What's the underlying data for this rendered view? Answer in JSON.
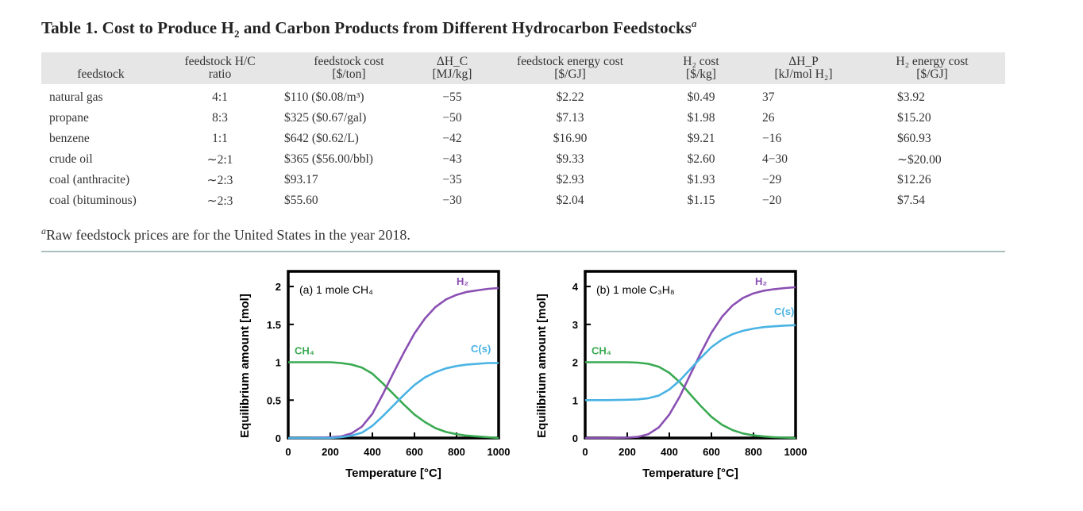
{
  "caption": {
    "prefix": "Table 1. Cost to Produce H",
    "sub": "2",
    "suffix": " and Carbon Products from Different Hydrocarbon Feedstocks",
    "note_marker": "a"
  },
  "table": {
    "headers": [
      {
        "line1": "",
        "line2": "feedstock"
      },
      {
        "line1": "feedstock H/C",
        "line2": "ratio"
      },
      {
        "line1": "feedstock cost",
        "line2": "[$/ton]"
      },
      {
        "line1": "ΔH_C",
        "line2": "[MJ/kg]"
      },
      {
        "line1": "feedstock energy cost",
        "line2": "[$/GJ]"
      },
      {
        "line1": "H₂ cost",
        "line2": "[$/kg]"
      },
      {
        "line1": "ΔH_P",
        "line2": "[kJ/mol H₂]"
      },
      {
        "line1": "H₂ energy cost",
        "line2": "[$/GJ]"
      }
    ],
    "rows": [
      [
        "natural gas",
        "4:1",
        "$110 ($0.08/m³)",
        "−55",
        "$2.22",
        "$0.49",
        "37",
        "$3.92"
      ],
      [
        "propane",
        "8:3",
        "$325 ($0.67/gal)",
        "−50",
        "$7.13",
        "$1.98",
        "26",
        "$15.20"
      ],
      [
        "benzene",
        "1:1",
        "$642 ($0.62/L)",
        "−42",
        "$16.90",
        "$9.21",
        "−16",
        "$60.93"
      ],
      [
        "crude oil",
        "∼2:1",
        "$365 ($56.00/bbl)",
        "−43",
        "$9.33",
        "$2.60",
        "4−30",
        "∼$20.00"
      ],
      [
        "coal (anthracite)",
        "∼2:3",
        "$93.17",
        "−35",
        "$2.93",
        "$1.93",
        "−29",
        "$12.26"
      ],
      [
        "coal (bituminous)",
        "∼2:3",
        "$55.60",
        "−30",
        "$2.04",
        "$1.15",
        "−20",
        "$7.54"
      ]
    ]
  },
  "footnote": {
    "marker": "a",
    "text": "Raw feedstock prices are for the United States in the year 2018."
  },
  "chart_data": [
    {
      "type": "line",
      "title": "(a) 1 mole CH₄",
      "xlabel": "Temperature [°C]",
      "ylabel": "Equilibrium amount [mol]",
      "xlim": [
        0,
        1000
      ],
      "ylim": [
        0,
        2.2
      ],
      "xticks": [
        0,
        200,
        400,
        600,
        800,
        1000
      ],
      "yticks": [
        0,
        0.5,
        1,
        1.5,
        2
      ],
      "ytick_labels": [
        "0",
        "0.5",
        "1",
        "1.5",
        "2"
      ],
      "grid": false,
      "x": [
        0,
        100,
        200,
        250,
        300,
        350,
        400,
        450,
        500,
        550,
        600,
        650,
        700,
        750,
        800,
        850,
        900,
        950,
        1000
      ],
      "series": [
        {
          "name": "CH₄",
          "color": "#3aaa52",
          "values": [
            1.0,
            1.0,
            1.0,
            0.99,
            0.97,
            0.93,
            0.85,
            0.72,
            0.58,
            0.44,
            0.31,
            0.21,
            0.13,
            0.08,
            0.05,
            0.03,
            0.02,
            0.01,
            0.0
          ]
        },
        {
          "name": "H₂",
          "color": "#8a4fb3",
          "values": [
            0.0,
            0.0,
            0.01,
            0.02,
            0.06,
            0.15,
            0.32,
            0.58,
            0.86,
            1.13,
            1.38,
            1.58,
            1.73,
            1.83,
            1.89,
            1.93,
            1.95,
            1.97,
            1.98
          ]
        },
        {
          "name": "C(s)",
          "color": "#49b3e3",
          "values": [
            0.0,
            0.0,
            0.0,
            0.01,
            0.03,
            0.07,
            0.16,
            0.29,
            0.43,
            0.57,
            0.7,
            0.8,
            0.87,
            0.92,
            0.95,
            0.97,
            0.98,
            0.99,
            0.99
          ]
        }
      ]
    },
    {
      "type": "line",
      "title": "(b) 1 mole C₃H₈",
      "xlabel": "Temperature [°C]",
      "ylabel": "Equilibrium amount [mol]",
      "xlim": [
        0,
        1000
      ],
      "ylim": [
        0,
        4.4
      ],
      "xticks": [
        0,
        200,
        400,
        600,
        800,
        1000
      ],
      "yticks": [
        0,
        1,
        2,
        3,
        4
      ],
      "ytick_labels": [
        "0",
        "1",
        "2",
        "3",
        "4"
      ],
      "grid": false,
      "x": [
        0,
        100,
        200,
        250,
        300,
        350,
        400,
        450,
        500,
        550,
        600,
        650,
        700,
        750,
        800,
        850,
        900,
        950,
        1000
      ],
      "series": [
        {
          "name": "CH₄",
          "color": "#3aaa52",
          "values": [
            2.0,
            2.0,
            2.0,
            1.99,
            1.96,
            1.88,
            1.72,
            1.47,
            1.15,
            0.84,
            0.56,
            0.35,
            0.21,
            0.12,
            0.07,
            0.04,
            0.02,
            0.01,
            0.0
          ]
        },
        {
          "name": "H₂",
          "color": "#8a4fb3",
          "values": [
            0.0,
            0.0,
            0.01,
            0.03,
            0.1,
            0.28,
            0.62,
            1.1,
            1.68,
            2.25,
            2.78,
            3.2,
            3.5,
            3.7,
            3.82,
            3.89,
            3.93,
            3.96,
            3.98
          ]
        },
        {
          "name": "C(s)",
          "color": "#49b3e3",
          "values": [
            1.0,
            1.0,
            1.01,
            1.02,
            1.05,
            1.12,
            1.28,
            1.52,
            1.82,
            2.12,
            2.4,
            2.6,
            2.74,
            2.83,
            2.89,
            2.93,
            2.95,
            2.97,
            2.98
          ]
        }
      ]
    }
  ]
}
